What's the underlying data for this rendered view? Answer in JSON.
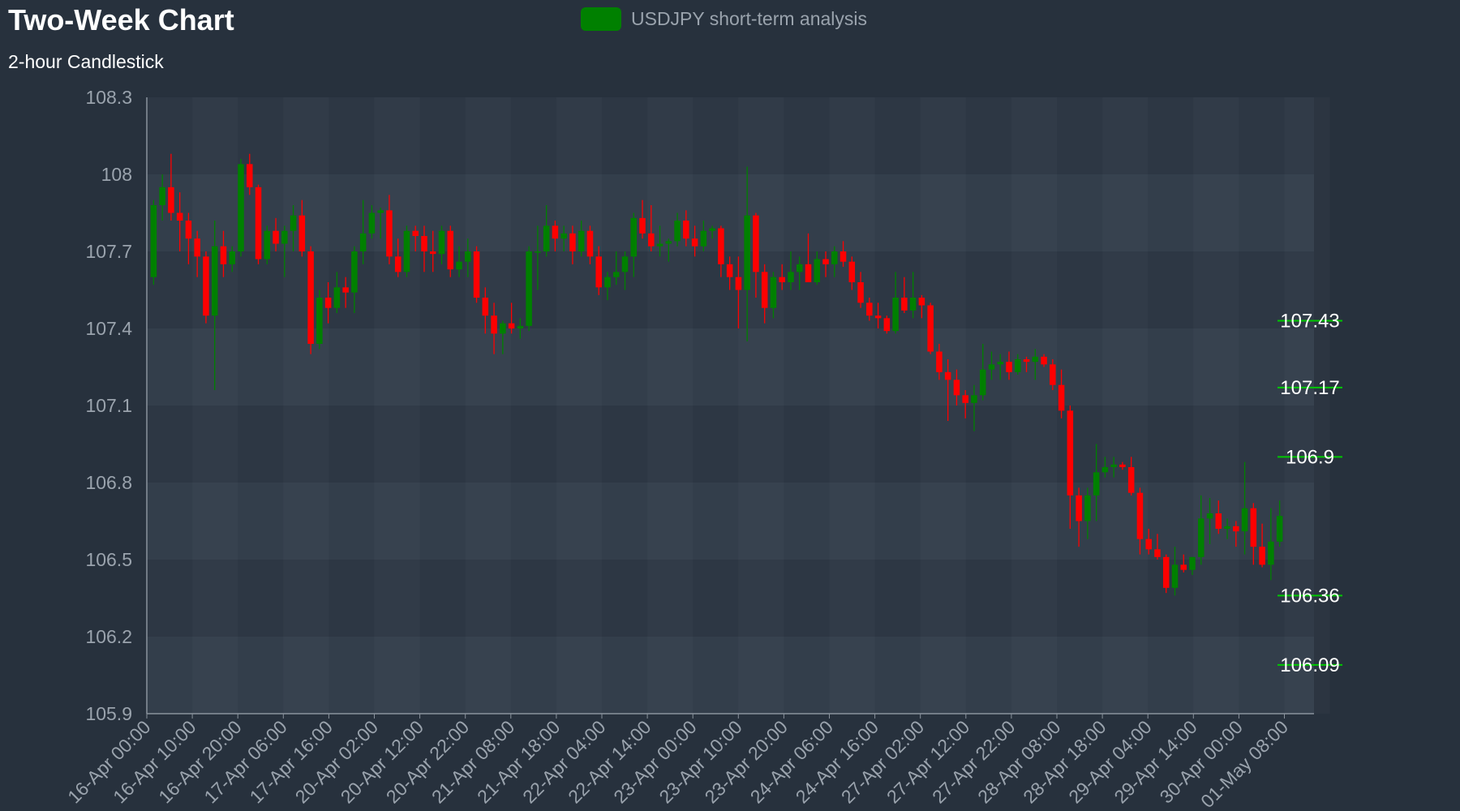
{
  "colors": {
    "background": "#27313d",
    "up": "#008000",
    "down": "#ff0000",
    "axis": "#9aa3ad",
    "level_line": "#00c800"
  },
  "legend": {
    "label": "USDJPY short-term analysis",
    "color": "#008000"
  },
  "chart_data": {
    "type": "candlestick",
    "title": "Two-Week Chart",
    "subtitle": "2-hour Candlestick",
    "ylim": [
      105.9,
      108.3
    ],
    "y_ticks": [
      "108.3",
      "108",
      "107.7",
      "107.4",
      "107.1",
      "106.8",
      "106.5",
      "106.2",
      "105.9"
    ],
    "x_ticks": [
      "16-Apr 00:00",
      "16-Apr 10:00",
      "16-Apr 20:00",
      "17-Apr 06:00",
      "17-Apr 16:00",
      "20-Apr 02:00",
      "20-Apr 12:00",
      "20-Apr 22:00",
      "21-Apr 08:00",
      "21-Apr 18:00",
      "22-Apr 04:00",
      "22-Apr 14:00",
      "23-Apr 00:00",
      "23-Apr 10:00",
      "23-Apr 20:00",
      "24-Apr 06:00",
      "24-Apr 16:00",
      "27-Apr 02:00",
      "27-Apr 12:00",
      "27-Apr 22:00",
      "28-Apr 08:00",
      "28-Apr 18:00",
      "29-Apr 04:00",
      "29-Apr 14:00",
      "30-Apr 00:00",
      "01-May 08:00"
    ],
    "levels": [
      {
        "label": "107.43",
        "value": 107.43
      },
      {
        "label": "107.17",
        "value": 107.17
      },
      {
        "label": "106.9",
        "value": 106.9
      },
      {
        "label": "106.36",
        "value": 106.36
      },
      {
        "label": "106.09",
        "value": 106.09
      }
    ],
    "series": [
      {
        "values": [
          [
            107.6,
            107.9,
            107.57,
            107.88
          ],
          [
            107.88,
            108.0,
            107.82,
            107.95
          ],
          [
            107.95,
            108.08,
            107.82,
            107.85
          ],
          [
            107.85,
            107.93,
            107.7,
            107.82
          ],
          [
            107.82,
            107.85,
            107.65,
            107.75
          ],
          [
            107.75,
            107.78,
            107.6,
            107.68
          ],
          [
            107.68,
            107.7,
            107.42,
            107.45
          ],
          [
            107.45,
            107.82,
            107.16,
            107.72
          ],
          [
            107.72,
            107.78,
            107.6,
            107.65
          ],
          [
            107.65,
            107.72,
            107.62,
            107.7
          ],
          [
            107.7,
            108.06,
            107.68,
            108.04
          ],
          [
            108.04,
            108.08,
            107.92,
            107.95
          ],
          [
            107.95,
            107.96,
            107.65,
            107.67
          ],
          [
            107.67,
            107.8,
            107.65,
            107.78
          ],
          [
            107.78,
            107.83,
            107.7,
            107.73
          ],
          [
            107.73,
            107.8,
            107.6,
            107.78
          ],
          [
            107.78,
            107.88,
            107.7,
            107.84
          ],
          [
            107.84,
            107.9,
            107.68,
            107.7
          ],
          [
            107.7,
            107.72,
            107.3,
            107.34
          ],
          [
            107.34,
            107.55,
            107.32,
            107.52
          ],
          [
            107.52,
            107.58,
            107.42,
            107.48
          ],
          [
            107.48,
            107.62,
            107.46,
            107.56
          ],
          [
            107.56,
            107.6,
            107.48,
            107.54
          ],
          [
            107.54,
            107.72,
            107.46,
            107.7
          ],
          [
            107.7,
            107.9,
            107.65,
            107.77
          ],
          [
            107.77,
            107.88,
            107.75,
            107.85
          ],
          [
            107.85,
            107.87,
            107.75,
            107.86
          ],
          [
            107.86,
            107.92,
            107.65,
            107.68
          ],
          [
            107.68,
            107.75,
            107.6,
            107.62
          ],
          [
            107.62,
            107.8,
            107.6,
            107.78
          ],
          [
            107.78,
            107.8,
            107.7,
            107.76
          ],
          [
            107.76,
            107.8,
            107.62,
            107.7
          ],
          [
            107.7,
            107.78,
            107.62,
            107.69
          ],
          [
            107.69,
            107.8,
            107.65,
            107.78
          ],
          [
            107.78,
            107.8,
            107.6,
            107.63
          ],
          [
            107.63,
            107.72,
            107.6,
            107.66
          ],
          [
            107.66,
            107.75,
            107.6,
            107.7
          ],
          [
            107.7,
            107.72,
            107.5,
            107.52
          ],
          [
            107.52,
            107.56,
            107.38,
            107.45
          ],
          [
            107.45,
            107.5,
            107.3,
            107.38
          ],
          [
            107.38,
            107.43,
            107.3,
            107.42
          ],
          [
            107.42,
            107.5,
            107.38,
            107.4
          ],
          [
            107.4,
            107.44,
            107.36,
            107.41
          ],
          [
            107.41,
            107.72,
            107.39,
            107.7
          ],
          [
            107.7,
            107.8,
            107.55,
            107.7
          ],
          [
            107.7,
            107.88,
            107.68,
            107.8
          ],
          [
            107.8,
            107.82,
            107.7,
            107.75
          ],
          [
            107.75,
            107.8,
            107.7,
            107.77
          ],
          [
            107.77,
            107.8,
            107.65,
            107.7
          ],
          [
            107.7,
            107.82,
            107.68,
            107.78
          ],
          [
            107.78,
            107.8,
            107.65,
            107.68
          ],
          [
            107.68,
            107.72,
            107.53,
            107.56
          ],
          [
            107.56,
            107.62,
            107.51,
            107.6
          ],
          [
            107.6,
            107.7,
            107.57,
            107.62
          ],
          [
            107.62,
            107.7,
            107.55,
            107.68
          ],
          [
            107.68,
            107.85,
            107.6,
            107.83
          ],
          [
            107.83,
            107.9,
            107.75,
            107.77
          ],
          [
            107.77,
            107.88,
            107.7,
            107.72
          ],
          [
            107.72,
            107.8,
            107.68,
            107.73
          ],
          [
            107.73,
            107.75,
            107.66,
            107.74
          ],
          [
            107.74,
            107.85,
            107.72,
            107.82
          ],
          [
            107.82,
            107.86,
            107.72,
            107.75
          ],
          [
            107.75,
            107.8,
            107.68,
            107.72
          ],
          [
            107.72,
            107.82,
            107.7,
            107.78
          ],
          [
            107.78,
            107.8,
            107.75,
            107.79
          ],
          [
            107.79,
            107.8,
            107.6,
            107.65
          ],
          [
            107.65,
            107.68,
            107.55,
            107.6
          ],
          [
            107.6,
            107.68,
            107.4,
            107.55
          ],
          [
            107.55,
            108.03,
            107.35,
            107.84
          ],
          [
            107.84,
            107.85,
            107.52,
            107.62
          ],
          [
            107.62,
            107.65,
            107.42,
            107.48
          ],
          [
            107.48,
            107.62,
            107.44,
            107.6
          ],
          [
            107.6,
            107.65,
            107.55,
            107.58
          ],
          [
            107.58,
            107.7,
            107.55,
            107.62
          ],
          [
            107.62,
            107.68,
            107.55,
            107.65
          ],
          [
            107.65,
            107.77,
            107.58,
            107.58
          ],
          [
            107.58,
            107.7,
            107.57,
            107.67
          ],
          [
            107.67,
            107.7,
            107.6,
            107.65
          ],
          [
            107.65,
            107.72,
            107.6,
            107.7
          ],
          [
            107.7,
            107.74,
            107.64,
            107.66
          ],
          [
            107.66,
            107.68,
            107.55,
            107.58
          ],
          [
            107.58,
            107.62,
            107.48,
            107.5
          ],
          [
            107.5,
            107.52,
            107.43,
            107.45
          ],
          [
            107.45,
            107.5,
            107.4,
            107.44
          ],
          [
            107.44,
            107.45,
            107.38,
            107.39
          ],
          [
            107.39,
            107.62,
            107.38,
            107.52
          ],
          [
            107.52,
            107.6,
            107.46,
            107.47
          ],
          [
            107.47,
            107.62,
            107.44,
            107.52
          ],
          [
            107.52,
            107.53,
            107.44,
            107.49
          ],
          [
            107.49,
            107.5,
            107.3,
            107.31
          ],
          [
            107.31,
            107.34,
            107.2,
            107.23
          ],
          [
            107.23,
            107.28,
            107.04,
            107.2
          ],
          [
            107.2,
            107.24,
            107.1,
            107.14
          ],
          [
            107.14,
            107.16,
            107.05,
            107.11
          ],
          [
            107.11,
            107.18,
            107.0,
            107.14
          ],
          [
            107.14,
            107.34,
            107.12,
            107.24
          ],
          [
            107.24,
            107.31,
            107.2,
            107.26
          ],
          [
            107.26,
            107.3,
            107.2,
            107.27
          ],
          [
            107.27,
            107.31,
            107.2,
            107.23
          ],
          [
            107.23,
            107.3,
            107.22,
            107.28
          ],
          [
            107.28,
            107.29,
            107.23,
            107.27
          ],
          [
            107.27,
            107.32,
            107.2,
            107.29
          ],
          [
            107.29,
            107.3,
            107.25,
            107.26
          ],
          [
            107.26,
            107.28,
            107.16,
            107.18
          ],
          [
            107.18,
            107.24,
            107.05,
            107.08
          ],
          [
            107.08,
            107.1,
            106.62,
            106.75
          ],
          [
            106.75,
            106.78,
            106.55,
            106.65
          ],
          [
            106.65,
            106.78,
            106.58,
            106.75
          ],
          [
            106.75,
            106.95,
            106.65,
            106.84
          ],
          [
            106.84,
            106.9,
            106.82,
            106.86
          ],
          [
            106.86,
            106.9,
            106.82,
            106.87
          ],
          [
            106.87,
            106.88,
            106.85,
            106.86
          ],
          [
            106.86,
            106.9,
            106.75,
            106.76
          ],
          [
            106.76,
            106.78,
            106.52,
            106.58
          ],
          [
            106.58,
            106.62,
            106.52,
            106.54
          ],
          [
            106.54,
            106.6,
            106.5,
            106.51
          ],
          [
            106.51,
            106.52,
            106.37,
            106.39
          ],
          [
            106.39,
            106.55,
            106.36,
            106.48
          ],
          [
            106.48,
            106.52,
            106.45,
            106.46
          ],
          [
            106.46,
            106.51,
            106.44,
            106.51
          ],
          [
            106.51,
            106.75,
            106.48,
            106.66
          ],
          [
            106.66,
            106.74,
            106.56,
            106.68
          ],
          [
            106.68,
            106.73,
            106.6,
            106.62
          ],
          [
            106.62,
            106.66,
            106.58,
            106.63
          ],
          [
            106.63,
            106.65,
            106.55,
            106.61
          ],
          [
            106.61,
            106.88,
            106.52,
            106.7
          ],
          [
            106.7,
            106.72,
            106.48,
            106.55
          ],
          [
            106.55,
            106.64,
            106.47,
            106.48
          ],
          [
            106.48,
            106.7,
            106.42,
            106.57
          ],
          [
            106.57,
            106.73,
            106.55,
            106.67
          ]
        ]
      }
    ]
  }
}
